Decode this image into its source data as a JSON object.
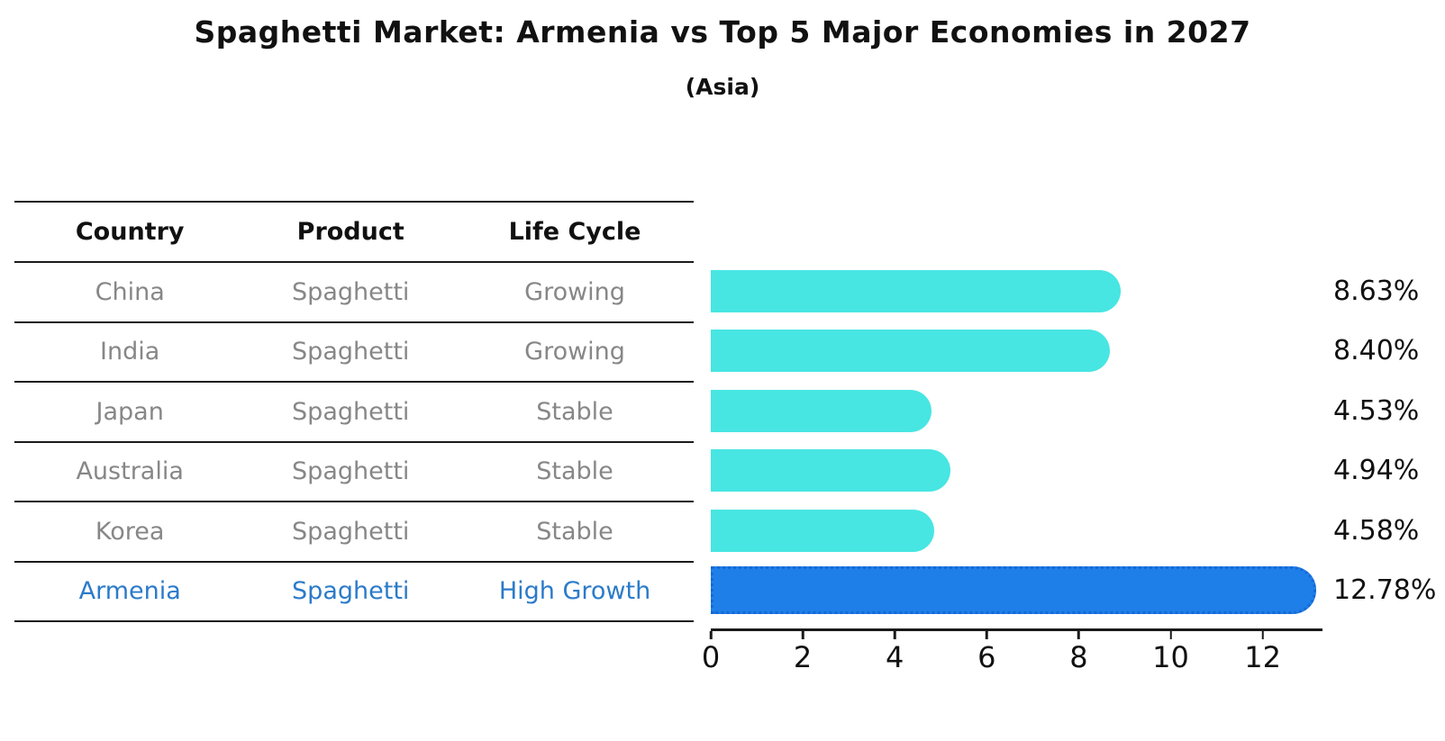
{
  "title": "Spaghetti Market: Armenia vs Top 5 Major Economies in 2027",
  "subtitle": "(Asia)",
  "colors": {
    "bar_default": "#47e6e2",
    "bar_highlight": "#1e7fe8",
    "bar_highlight_border": "#1668d6",
    "table_text": "#878787",
    "highlight_text": "#2b7bc9",
    "heading_text": "#111111",
    "axis": "#1a1a1a"
  },
  "table": {
    "headers": [
      "Country",
      "Product",
      "Life Cycle"
    ],
    "rows": [
      {
        "country": "China",
        "product": "Spaghetti",
        "life_cycle": "Growing",
        "highlight": false
      },
      {
        "country": "India",
        "product": "Spaghetti",
        "life_cycle": "Growing",
        "highlight": false
      },
      {
        "country": "Japan",
        "product": "Spaghetti",
        "life_cycle": "Stable",
        "highlight": false
      },
      {
        "country": "Australia",
        "product": "Spaghetti",
        "life_cycle": "Stable",
        "highlight": false
      },
      {
        "country": "Korea",
        "product": "Spaghetti",
        "life_cycle": "Stable",
        "highlight": false
      },
      {
        "country": "Armenia",
        "product": "Spaghetti",
        "life_cycle": "High Growth",
        "highlight": true
      }
    ]
  },
  "chart_data": {
    "type": "bar",
    "orientation": "horizontal",
    "title": "Spaghetti Market: Armenia vs Top 5 Major Economies in 2027",
    "subtitle": "(Asia)",
    "categories": [
      "China",
      "India",
      "Japan",
      "Australia",
      "Korea",
      "Armenia"
    ],
    "values": [
      8.63,
      8.4,
      4.53,
      4.94,
      4.58,
      12.78
    ],
    "value_labels": [
      "8.63%",
      "8.40%",
      "4.53%",
      "4.94%",
      "4.58%",
      "12.78%"
    ],
    "unit": "%",
    "highlight_index": 5,
    "xlim": [
      0,
      13.3
    ],
    "x_ticks": [
      0,
      2,
      4,
      6,
      8,
      10,
      12
    ],
    "grid": false,
    "legend": false
  }
}
